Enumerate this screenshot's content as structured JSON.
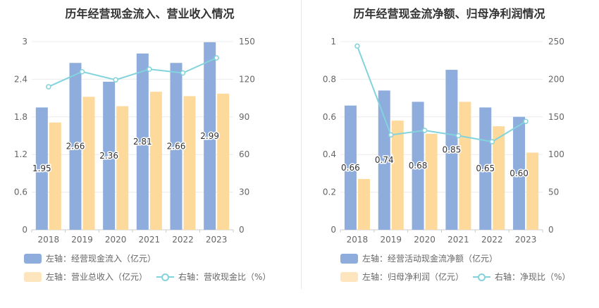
{
  "charts": [
    {
      "title": "历年经营现金流入、营业收入情况",
      "legend": {
        "bar1": "左轴：经营现金流入（亿元）",
        "bar2": "左轴：营业总收入（亿元）",
        "line": "右轴：营收现金比（%）"
      }
    },
    {
      "title": "历年经营现金流净额、归母净利润情况",
      "legend": {
        "bar1": "左轴：经营活动现金流净额（亿元）",
        "bar2": "左轴：归母净利润（亿元）",
        "line": "右轴：净现比（%）"
      }
    }
  ],
  "colors": {
    "bar1": "#8eacdc",
    "bar2": "#fdd99b",
    "line": "#82d3dc"
  },
  "chart_data": [
    {
      "type": "bar",
      "title": "历年经营现金流入、营业收入情况",
      "categories": [
        "2018",
        "2019",
        "2020",
        "2021",
        "2022",
        "2023"
      ],
      "ylim_left": [
        0,
        3
      ],
      "yticks_left": [
        "0",
        "0.6",
        "1.2",
        "1.8",
        "2.4",
        "3"
      ],
      "ylim_right": [
        0,
        150
      ],
      "yticks_right": [
        "0",
        "30",
        "60",
        "90",
        "120",
        "150"
      ],
      "series": [
        {
          "name": "左轴：经营现金流入（亿元）",
          "axis": "left",
          "type": "bar",
          "values": [
            1.95,
            2.66,
            2.36,
            2.81,
            2.66,
            2.99
          ],
          "labels": [
            "1.95",
            "2.66",
            "2.36",
            "2.81",
            "2.66",
            "2.99"
          ]
        },
        {
          "name": "左轴：营业总收入（亿元）",
          "axis": "left",
          "type": "bar",
          "values": [
            1.71,
            2.12,
            1.97,
            2.2,
            2.13,
            2.17
          ]
        },
        {
          "name": "右轴：营收现金比（%）",
          "axis": "right",
          "type": "line",
          "values": [
            114,
            126,
            119.5,
            128,
            125,
            137
          ]
        }
      ],
      "grid": true
    },
    {
      "type": "bar",
      "title": "历年经营现金流净额、归母净利润情况",
      "categories": [
        "2018",
        "2019",
        "2020",
        "2021",
        "2022",
        "2023"
      ],
      "ylim_left": [
        0,
        1
      ],
      "yticks_left": [
        "0",
        "0.2",
        "0.4",
        "0.6",
        "0.8",
        "1"
      ],
      "ylim_right": [
        0,
        250
      ],
      "yticks_right": [
        "0",
        "50",
        "100",
        "150",
        "200",
        "250"
      ],
      "series": [
        {
          "name": "左轴：经营活动现金流净额（亿元）",
          "axis": "left",
          "type": "bar",
          "values": [
            0.66,
            0.74,
            0.68,
            0.85,
            0.65,
            0.6
          ],
          "labels": [
            "0.66",
            "0.74",
            "0.68",
            "0.85",
            "0.65",
            "0.60"
          ]
        },
        {
          "name": "左轴：归母净利润（亿元）",
          "axis": "left",
          "type": "bar",
          "values": [
            0.27,
            0.58,
            0.51,
            0.68,
            0.55,
            0.41
          ]
        },
        {
          "name": "右轴：净现比（%）",
          "axis": "right",
          "type": "line",
          "values": [
            244,
            126,
            132,
            125,
            117,
            144
          ]
        }
      ],
      "grid": true
    }
  ]
}
